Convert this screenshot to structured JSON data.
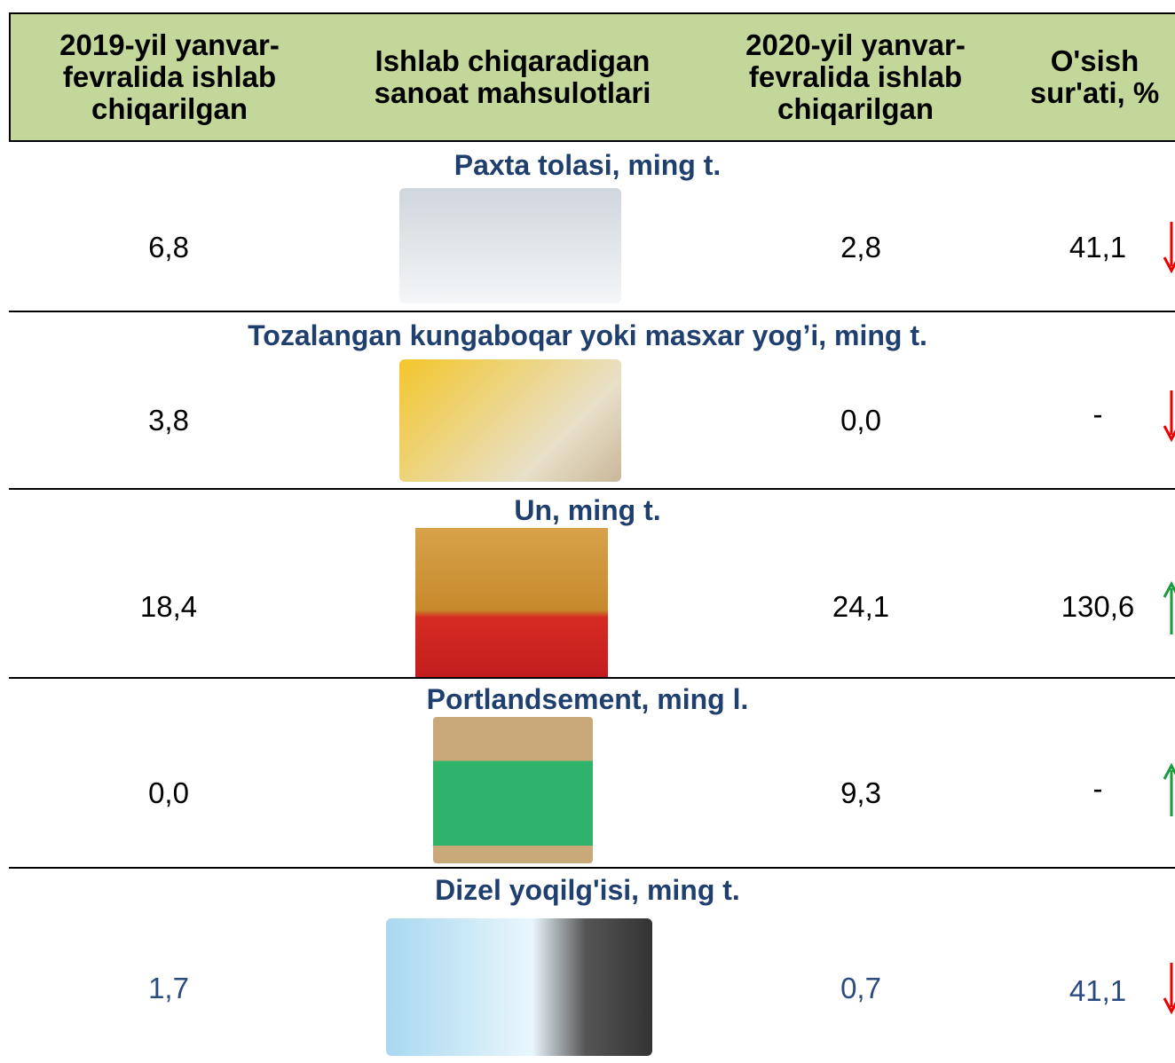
{
  "table": {
    "header": [
      "2019-yil yanvar-fevralida ishlab chiqarilgan",
      "Ishlab chiqaradigan sanoat mahsulotlari",
      "2020-yil yanvar-fevralida ishlab chiqarilgan",
      "O'sish sur'ati, %"
    ],
    "rows": [
      {
        "title": "Paxta tolasi, ming t.",
        "y2019": "6,8",
        "y2020": "2,8",
        "growth": "41,1"
      },
      {
        "title": "Tozalangan kungaboqar yoki masxar yog’i, ming t.",
        "y2019": "3,8",
        "y2020": "0,0",
        "growth": "-"
      },
      {
        "title": "Un, ming t.",
        "y2019": "18,4",
        "y2020": "24,1",
        "growth": "130,6"
      },
      {
        "title": "Portlandsement, ming l.",
        "y2019": "0,0",
        "y2020": "9,3",
        "growth": "-"
      },
      {
        "title": "Dizel yoqilg'isi, ming t.",
        "y2019": "1,7",
        "y2020": "0,7",
        "growth": "41,1"
      }
    ]
  }
}
